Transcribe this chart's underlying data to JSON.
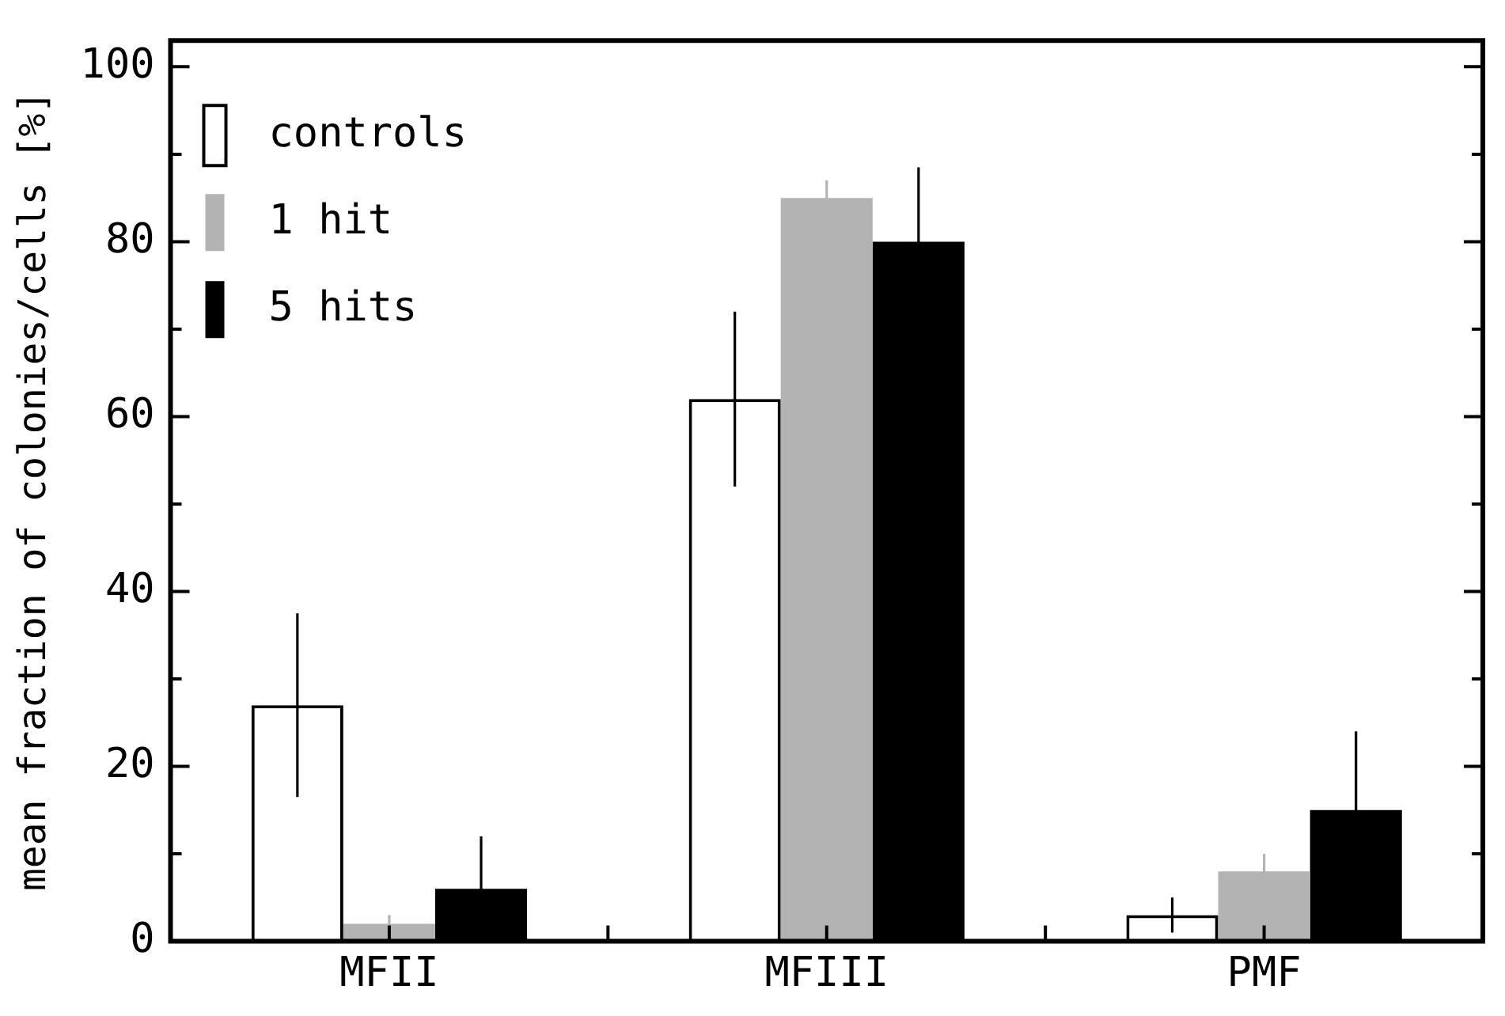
{
  "chart_data": {
    "type": "bar",
    "ylabel": "mean fraction of colonies/cells [%]",
    "categories": [
      "MFII",
      "MFIII",
      "PMF"
    ],
    "series": [
      {
        "name": "controls",
        "color": "#ffffff",
        "values": [
          27,
          62,
          3
        ],
        "errors": [
          10.5,
          10,
          2
        ]
      },
      {
        "name": "1 hit",
        "color": "#b3b3b3",
        "values": [
          2,
          85,
          8
        ],
        "errors": [
          1,
          2,
          2
        ]
      },
      {
        "name": "5 hits",
        "color": "#000000",
        "values": [
          6,
          80,
          15
        ],
        "errors": [
          6,
          8.5,
          9
        ]
      }
    ],
    "ylim": [
      0,
      103
    ],
    "yticks": [
      0,
      {
        "value": 10,
        "label": null
      },
      20,
      {
        "value": 30,
        "label": null
      },
      40,
      {
        "value": 50,
        "label": null
      },
      60,
      {
        "value": 70,
        "label": null
      },
      80,
      {
        "value": 90,
        "label": null
      },
      100
    ],
    "grid": false,
    "legend": "top left"
  }
}
